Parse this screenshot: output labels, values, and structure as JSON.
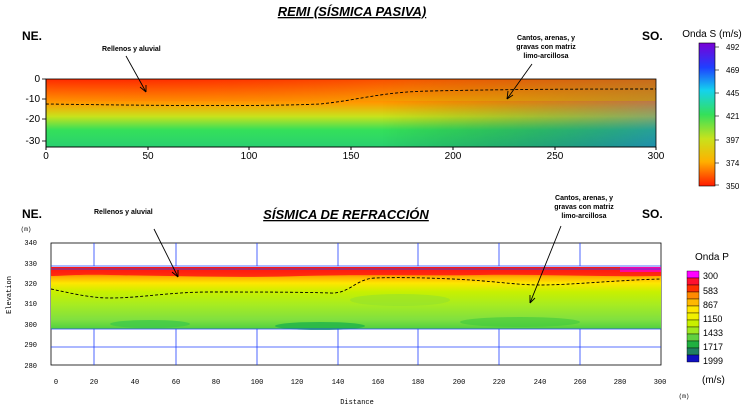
{
  "remi": {
    "title": "REMI (SÍSMICA PASIVA)",
    "left_dir": "NE.",
    "right_dir": "SO.",
    "label_left": "Rellenos y aluvial",
    "label_right_lines": [
      "Cantos, arenas, y",
      "gravas con matriz",
      "limo-arcillosa"
    ],
    "y_ticks": [
      "0",
      "-10",
      "-20",
      "-30"
    ],
    "x_ticks": [
      "0",
      "50",
      "100",
      "150",
      "200",
      "250",
      "300"
    ],
    "colorbar": {
      "title": "Onda S (m/s)",
      "ticks": [
        "492",
        "469",
        "445",
        "421",
        "397",
        "374",
        "350"
      ]
    }
  },
  "refraccion": {
    "title": "SÍSMICA DE REFRACCIÓN",
    "left_dir": "NE.",
    "right_dir": "SO.",
    "label_left": "Rellenos y aluvial",
    "label_right_lines": [
      "Cantos, arenas, y",
      "gravas con matriz",
      "limo-arcillosa"
    ],
    "y_unit": "(m)",
    "y_axis_label": "Elevation",
    "y_ticks": [
      "340",
      "330",
      "320",
      "310",
      "300",
      "290",
      "280"
    ],
    "x_ticks": [
      "0",
      "20",
      "40",
      "60",
      "80",
      "100",
      "120",
      "140",
      "160",
      "180",
      "200",
      "220",
      "240",
      "260",
      "280",
      "300"
    ],
    "x_axis_label": "Distance",
    "x_unit": "(m)",
    "colorbar": {
      "title": "Onda P",
      "ticks": [
        "300",
        "583",
        "867",
        "1150",
        "1433",
        "1717",
        "1999"
      ],
      "unit": "(m/s)"
    }
  },
  "colors": {
    "remi_scale": [
      "#7a00d6",
      "#1f3fff",
      "#14d2ee",
      "#34e05a",
      "#c8e21c",
      "#ffb000",
      "#ff1a00"
    ],
    "refr_scale": [
      "#ff00ff",
      "#ff1010",
      "#ff8a00",
      "#ffe600",
      "#c8f000",
      "#60d040",
      "#1010c0"
    ]
  }
}
